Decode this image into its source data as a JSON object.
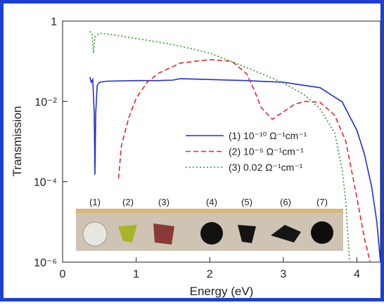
{
  "chart_data": {
    "type": "line",
    "log_y": true,
    "x_label": "Energy (eV)",
    "y_label": "Transmission",
    "xlim": [
      0,
      4.32
    ],
    "xticks": [
      0,
      1,
      2,
      3,
      4
    ],
    "ylim": [
      1e-06,
      1
    ],
    "yticks": [
      {
        "value": 1,
        "label": "1"
      },
      {
        "value": 0.01,
        "label": "10⁻²"
      },
      {
        "value": 0.0001,
        "label": "10⁻⁴"
      },
      {
        "value": 1e-06,
        "label": "10⁻⁶"
      }
    ],
    "series": [
      {
        "name": "(1) 10⁻¹⁰ Ω⁻¹cm⁻¹",
        "color": "#1f2fd8",
        "dash": "solid",
        "x": [
          0.37,
          0.39,
          0.41,
          0.43,
          0.44,
          0.45,
          0.47,
          0.5,
          0.6,
          1.0,
          1.3,
          1.5,
          1.6,
          2.0,
          2.5,
          3.0,
          3.5,
          3.8,
          4.0,
          4.1,
          4.2,
          4.27,
          4.32
        ],
        "values": [
          0.04,
          0.03,
          0.035,
          0.005,
          0.00015,
          0.005,
          0.025,
          0.03,
          0.032,
          0.033,
          0.033,
          0.034,
          0.037,
          0.035,
          0.033,
          0.03,
          0.022,
          0.0097,
          0.0019,
          0.0005,
          7.6e-05,
          1e-05,
          1e-06
        ]
      },
      {
        "name": "(2) 10⁻⁵ Ω⁻¹cm⁻¹",
        "color": "#e8242a",
        "dash": "dashed",
        "x": [
          0.76,
          0.8,
          0.9,
          1.0,
          1.15,
          1.3,
          1.6,
          2.0,
          2.3,
          2.5,
          2.6,
          2.7,
          2.85,
          3.0,
          3.15,
          3.3,
          3.5,
          3.7,
          3.85,
          4.0,
          4.1,
          4.18
        ],
        "values": [
          0.00012,
          0.0008,
          0.004,
          0.012,
          0.03,
          0.05,
          0.09,
          0.11,
          0.1,
          0.049,
          0.02,
          0.007,
          0.0036,
          0.0055,
          0.0085,
          0.01,
          0.0095,
          0.0045,
          0.001,
          4e-05,
          4e-06,
          1e-06
        ]
      },
      {
        "name": "(3) 0.02 Ω⁻¹cm⁻¹",
        "color": "#2a9a2a",
        "dash": "dotted",
        "x": [
          0.37,
          0.4,
          0.42,
          0.44,
          0.5,
          0.7,
          1.0,
          1.5,
          2.0,
          2.5,
          3.0,
          3.3,
          3.5,
          3.7,
          3.8,
          3.85,
          3.9
        ],
        "values": [
          0.55,
          0.5,
          0.16,
          0.4,
          0.5,
          0.45,
          0.37,
          0.26,
          0.16,
          0.07,
          0.029,
          0.014,
          0.0065,
          0.0016,
          0.0002,
          3e-05,
          1e-06
        ]
      }
    ],
    "inset_labels": [
      "(1)",
      "(2)",
      "(3)",
      "(4)",
      "(5)",
      "(6)",
      "(7)"
    ]
  }
}
